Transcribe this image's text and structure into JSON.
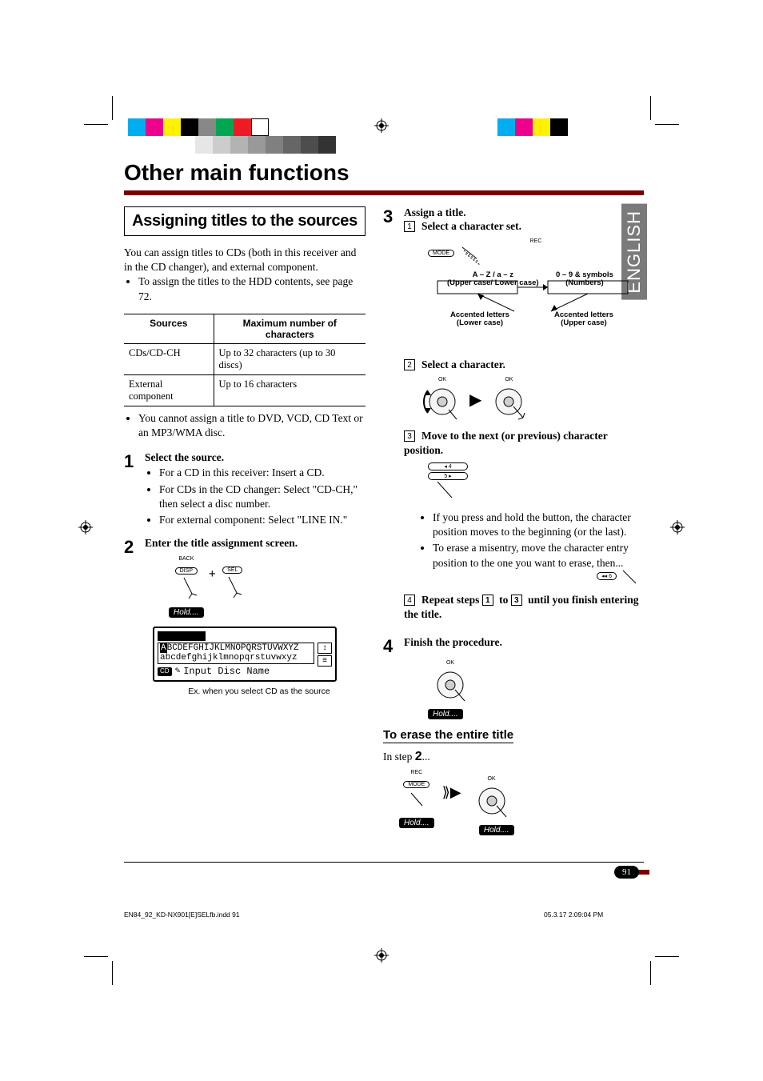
{
  "print_marks": {
    "crop_color": "#000000",
    "color_squares_left": [
      "#00aeef",
      "#ec008c",
      "#fff200",
      "#000000",
      "#888888",
      "#00a651",
      "#ed1c24",
      "#ffffff"
    ],
    "color_squares_right": [
      "#00aeef",
      "#ec008c",
      "#fff200",
      "#000000"
    ],
    "tint_bar": [
      "#e6e6e6",
      "#cccccc",
      "#b3b3b3",
      "#999999",
      "#808080",
      "#666666",
      "#4d4d4d",
      "#333333"
    ]
  },
  "lang_tab": "ENGLISH",
  "heading": "Other main functions",
  "rule_color": "#7a0000",
  "section_title": "Assigning titles to the sources",
  "intro_para": "You can assign titles to CDs (both in this receiver and in the CD changer), and external component.",
  "intro_bullets": [
    "To assign the titles to the HDD contents, see page 72."
  ],
  "table": {
    "headers": [
      "Sources",
      "Maximum number of characters"
    ],
    "rows": [
      [
        "CDs/CD-CH",
        "Up to 32 characters (up to 30 discs)"
      ],
      [
        "External component",
        "Up to 16 characters"
      ]
    ]
  },
  "note_after_table": "You cannot assign a title to DVD, VCD, CD Text or an MP3/WMA disc.",
  "step1": {
    "title": "Select the source.",
    "bullets": [
      "For a CD in this receiver: Insert a CD.",
      "For CDs in the CD changer: Select \"CD-CH,\" then select a disc number.",
      "For external component: Select \"LINE IN.\""
    ]
  },
  "step2": {
    "title": "Enter the title assignment screen.",
    "btn_back": "BACK",
    "btn_disp": "DISP",
    "btn_sel": "SEL",
    "hold": "Hold....",
    "lcd_upper_A": "A",
    "lcd_upper_rest": "BCDEFGHIJKLMNOPQRSTUVWXYZ",
    "lcd_lower": "abcdefghijklmnopqrstuvwxyz",
    "lcd_cd": "CD",
    "lcd_prompt": "Input Disc Name",
    "caption": "Ex. when you select CD as the source"
  },
  "step3": {
    "title": "Assign a title.",
    "sub1": {
      "title": "Select a character set.",
      "btn_rec": "REC",
      "btn_mode": "MODE",
      "labels": {
        "tl1": "A – Z / a – z",
        "tl2": "(Upper case/ Lower case)",
        "tr1": "0 – 9 & symbols",
        "tr2": "(Numbers)",
        "bl1": "Accented letters",
        "bl2": "(Lower case)",
        "br1": "Accented letters",
        "br2": "(Upper case)"
      }
    },
    "sub2": {
      "title": "Select a character.",
      "ok_label": "OK"
    },
    "sub3": {
      "title": "Move to the next (or previous) character position.",
      "btn4": "4",
      "btn5": "5",
      "bullets": [
        "If you press and hold the button, the character position moves to the beginning (or the last).",
        "To erase a misentry, move the character entry position to the one you want to erase, then..."
      ],
      "btn6": "6"
    },
    "sub4": {
      "title_a": "Repeat steps ",
      "title_b": " to ",
      "title_c": " until you finish entering the title.",
      "n1": "1",
      "n3": "3"
    }
  },
  "step4": {
    "title": "Finish the procedure.",
    "ok_label": "OK",
    "hold": "Hold...."
  },
  "erase": {
    "heading": "To erase the entire title",
    "in_step": "In step",
    "step_ref": "2",
    "ellipsis": "...",
    "btn_rec": "REC",
    "btn_mode": "MODE",
    "hold": "Hold....",
    "ok_label": "OK"
  },
  "footer": {
    "page_no": "91",
    "file_info": "EN84_92_KD-NX901[E]SELfb.indd   91",
    "timestamp": "05.3.17   2:09:04 PM"
  }
}
